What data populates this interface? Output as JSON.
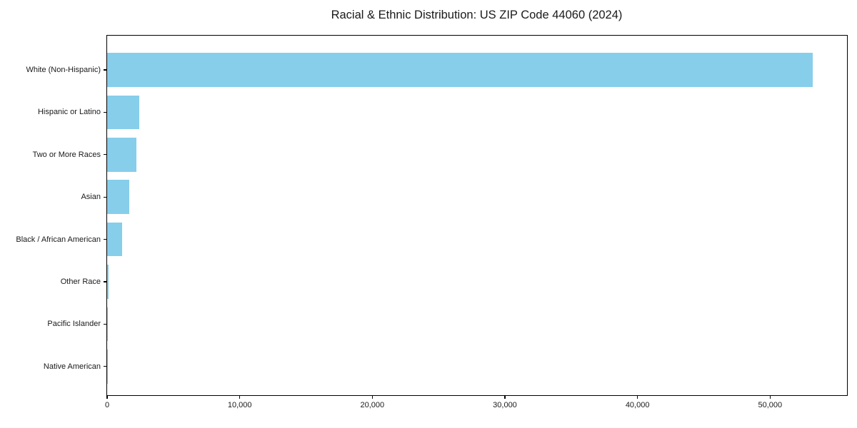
{
  "chart_data": {
    "type": "bar",
    "orientation": "horizontal",
    "title": "Racial & Ethnic Distribution: US ZIP Code 44060 (2024)",
    "categories": [
      "White (Non-Hispanic)",
      "Hispanic or Latino",
      "Two or More Races",
      "Asian",
      "Black / African American",
      "Other Race",
      "Pacific Islander",
      "Native American"
    ],
    "values": [
      53200,
      2400,
      2230,
      1670,
      1130,
      80,
      25,
      15
    ],
    "xlabel": "",
    "ylabel": "",
    "xlim": [
      0,
      55800
    ],
    "x_ticks": [
      0,
      10000,
      20000,
      30000,
      40000,
      50000
    ],
    "x_tick_labels": [
      "0",
      "10,000",
      "20,000",
      "30,000",
      "40,000",
      "50,000"
    ],
    "bar_color": "#87CEEB",
    "spine_color": "#000000",
    "background_color": "#ffffff",
    "grid": false,
    "legend": null
  }
}
